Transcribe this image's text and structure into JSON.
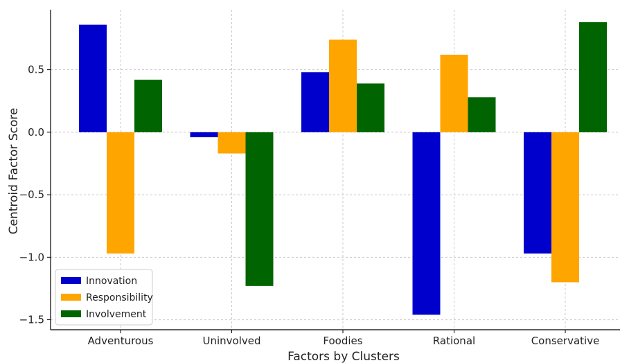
{
  "chart_data": {
    "type": "bar",
    "xlabel": "Factors by Clusters",
    "ylabel": "Centroid Factor Score",
    "categories": [
      "Adventurous",
      "Uninvolved",
      "Foodies",
      "Rational",
      "Conservative"
    ],
    "series": [
      {
        "name": "Innovation",
        "color": "#0000cc",
        "values": [
          0.86,
          -0.04,
          0.48,
          -1.46,
          -0.97
        ]
      },
      {
        "name": "Responsibility",
        "color": "#ffa500",
        "values": [
          -0.97,
          -0.17,
          0.74,
          0.62,
          -1.2
        ]
      },
      {
        "name": "Involvement",
        "color": "#006400",
        "values": [
          0.42,
          -1.23,
          0.39,
          0.28,
          0.88
        ]
      }
    ],
    "yticks": [
      0.5,
      0.0,
      -0.5,
      -1.0,
      -1.5
    ],
    "ytick_labels": [
      "0.5",
      "0.0",
      "−0.5",
      "−1.0",
      "−1.5"
    ],
    "ylim": [
      -1.58,
      0.98
    ],
    "grid": true,
    "legend_position": "lower-left"
  }
}
